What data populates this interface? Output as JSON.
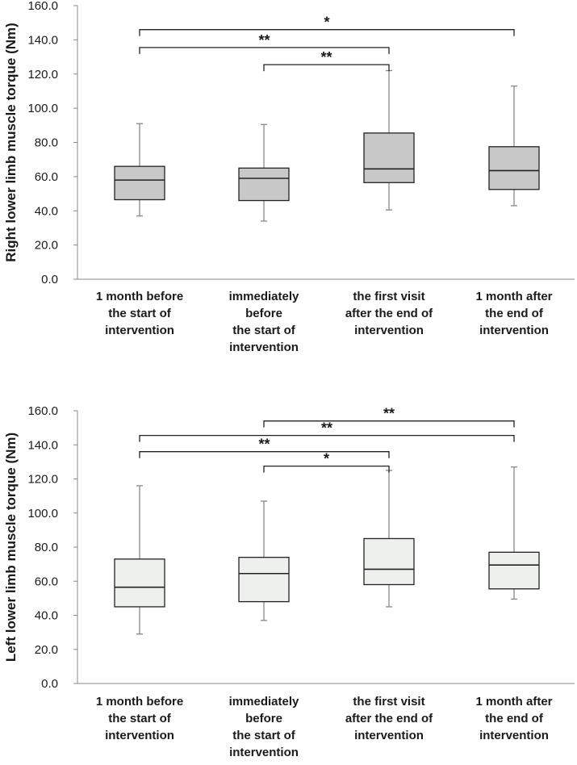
{
  "chart_data": [
    {
      "type": "box",
      "ylabel": "Right lower limb muscle torque (Nm)",
      "ylim": [
        0,
        160
      ],
      "yticks": [
        "0.0",
        "20.0",
        "40.0",
        "60.0",
        "80.0",
        "100.0",
        "120.0",
        "140.0",
        "160.0"
      ],
      "box_color": "#c8c8c8",
      "categories": [
        [
          "1 month before",
          "the start of",
          "intervention"
        ],
        [
          "immediately",
          "before",
          "the start of",
          "intervention"
        ],
        [
          "the first visit",
          "after the end of",
          "intervention"
        ],
        [
          "1 month after",
          "the end of",
          "intervention"
        ]
      ],
      "boxes": [
        {
          "min": 37,
          "q1": 46.5,
          "median": 58,
          "q3": 66,
          "max": 91
        },
        {
          "min": 34,
          "q1": 46,
          "median": 59,
          "q3": 65,
          "max": 90.5
        },
        {
          "min": 40.5,
          "q1": 56.5,
          "median": 64.5,
          "q3": 85.5,
          "max": 122
        },
        {
          "min": 43,
          "q1": 52.5,
          "median": 63.5,
          "q3": 77.5,
          "max": 113
        }
      ],
      "significance": [
        {
          "from": 0,
          "to": 3,
          "y": 146,
          "label": "*"
        },
        {
          "from": 0,
          "to": 2,
          "y": 135.5,
          "label": "**"
        },
        {
          "from": 1,
          "to": 2,
          "y": 125.5,
          "label": "**"
        }
      ]
    },
    {
      "type": "box",
      "ylabel": "Left lower limb muscle torque (Nm)",
      "ylim": [
        0,
        160
      ],
      "yticks": [
        "0.0",
        "20.0",
        "40.0",
        "60.0",
        "80.0",
        "100.0",
        "120.0",
        "140.0",
        "160.0"
      ],
      "box_color": "#eef0ee",
      "categories": [
        [
          "1 month before",
          "the start of",
          "intervention"
        ],
        [
          "immediately",
          "before",
          "the start of",
          "intervention"
        ],
        [
          "the first visit",
          "after the end of",
          "intervention"
        ],
        [
          "1 month after",
          "the end of",
          "intervention"
        ]
      ],
      "boxes": [
        {
          "min": 29,
          "q1": 45,
          "median": 56.5,
          "q3": 73,
          "max": 116
        },
        {
          "min": 37,
          "q1": 48,
          "median": 64.5,
          "q3": 74,
          "max": 107
        },
        {
          "min": 45,
          "q1": 58,
          "median": 67,
          "q3": 85,
          "max": 125
        },
        {
          "min": 49.5,
          "q1": 55.5,
          "median": 69.5,
          "q3": 77,
          "max": 127
        }
      ],
      "significance": [
        {
          "from": 1,
          "to": 3,
          "y": 154,
          "label": "**"
        },
        {
          "from": 0,
          "to": 3,
          "y": 145.5,
          "label": "**"
        },
        {
          "from": 0,
          "to": 2,
          "y": 136,
          "label": "**"
        },
        {
          "from": 1,
          "to": 2,
          "y": 127.5,
          "label": "*"
        }
      ]
    }
  ]
}
